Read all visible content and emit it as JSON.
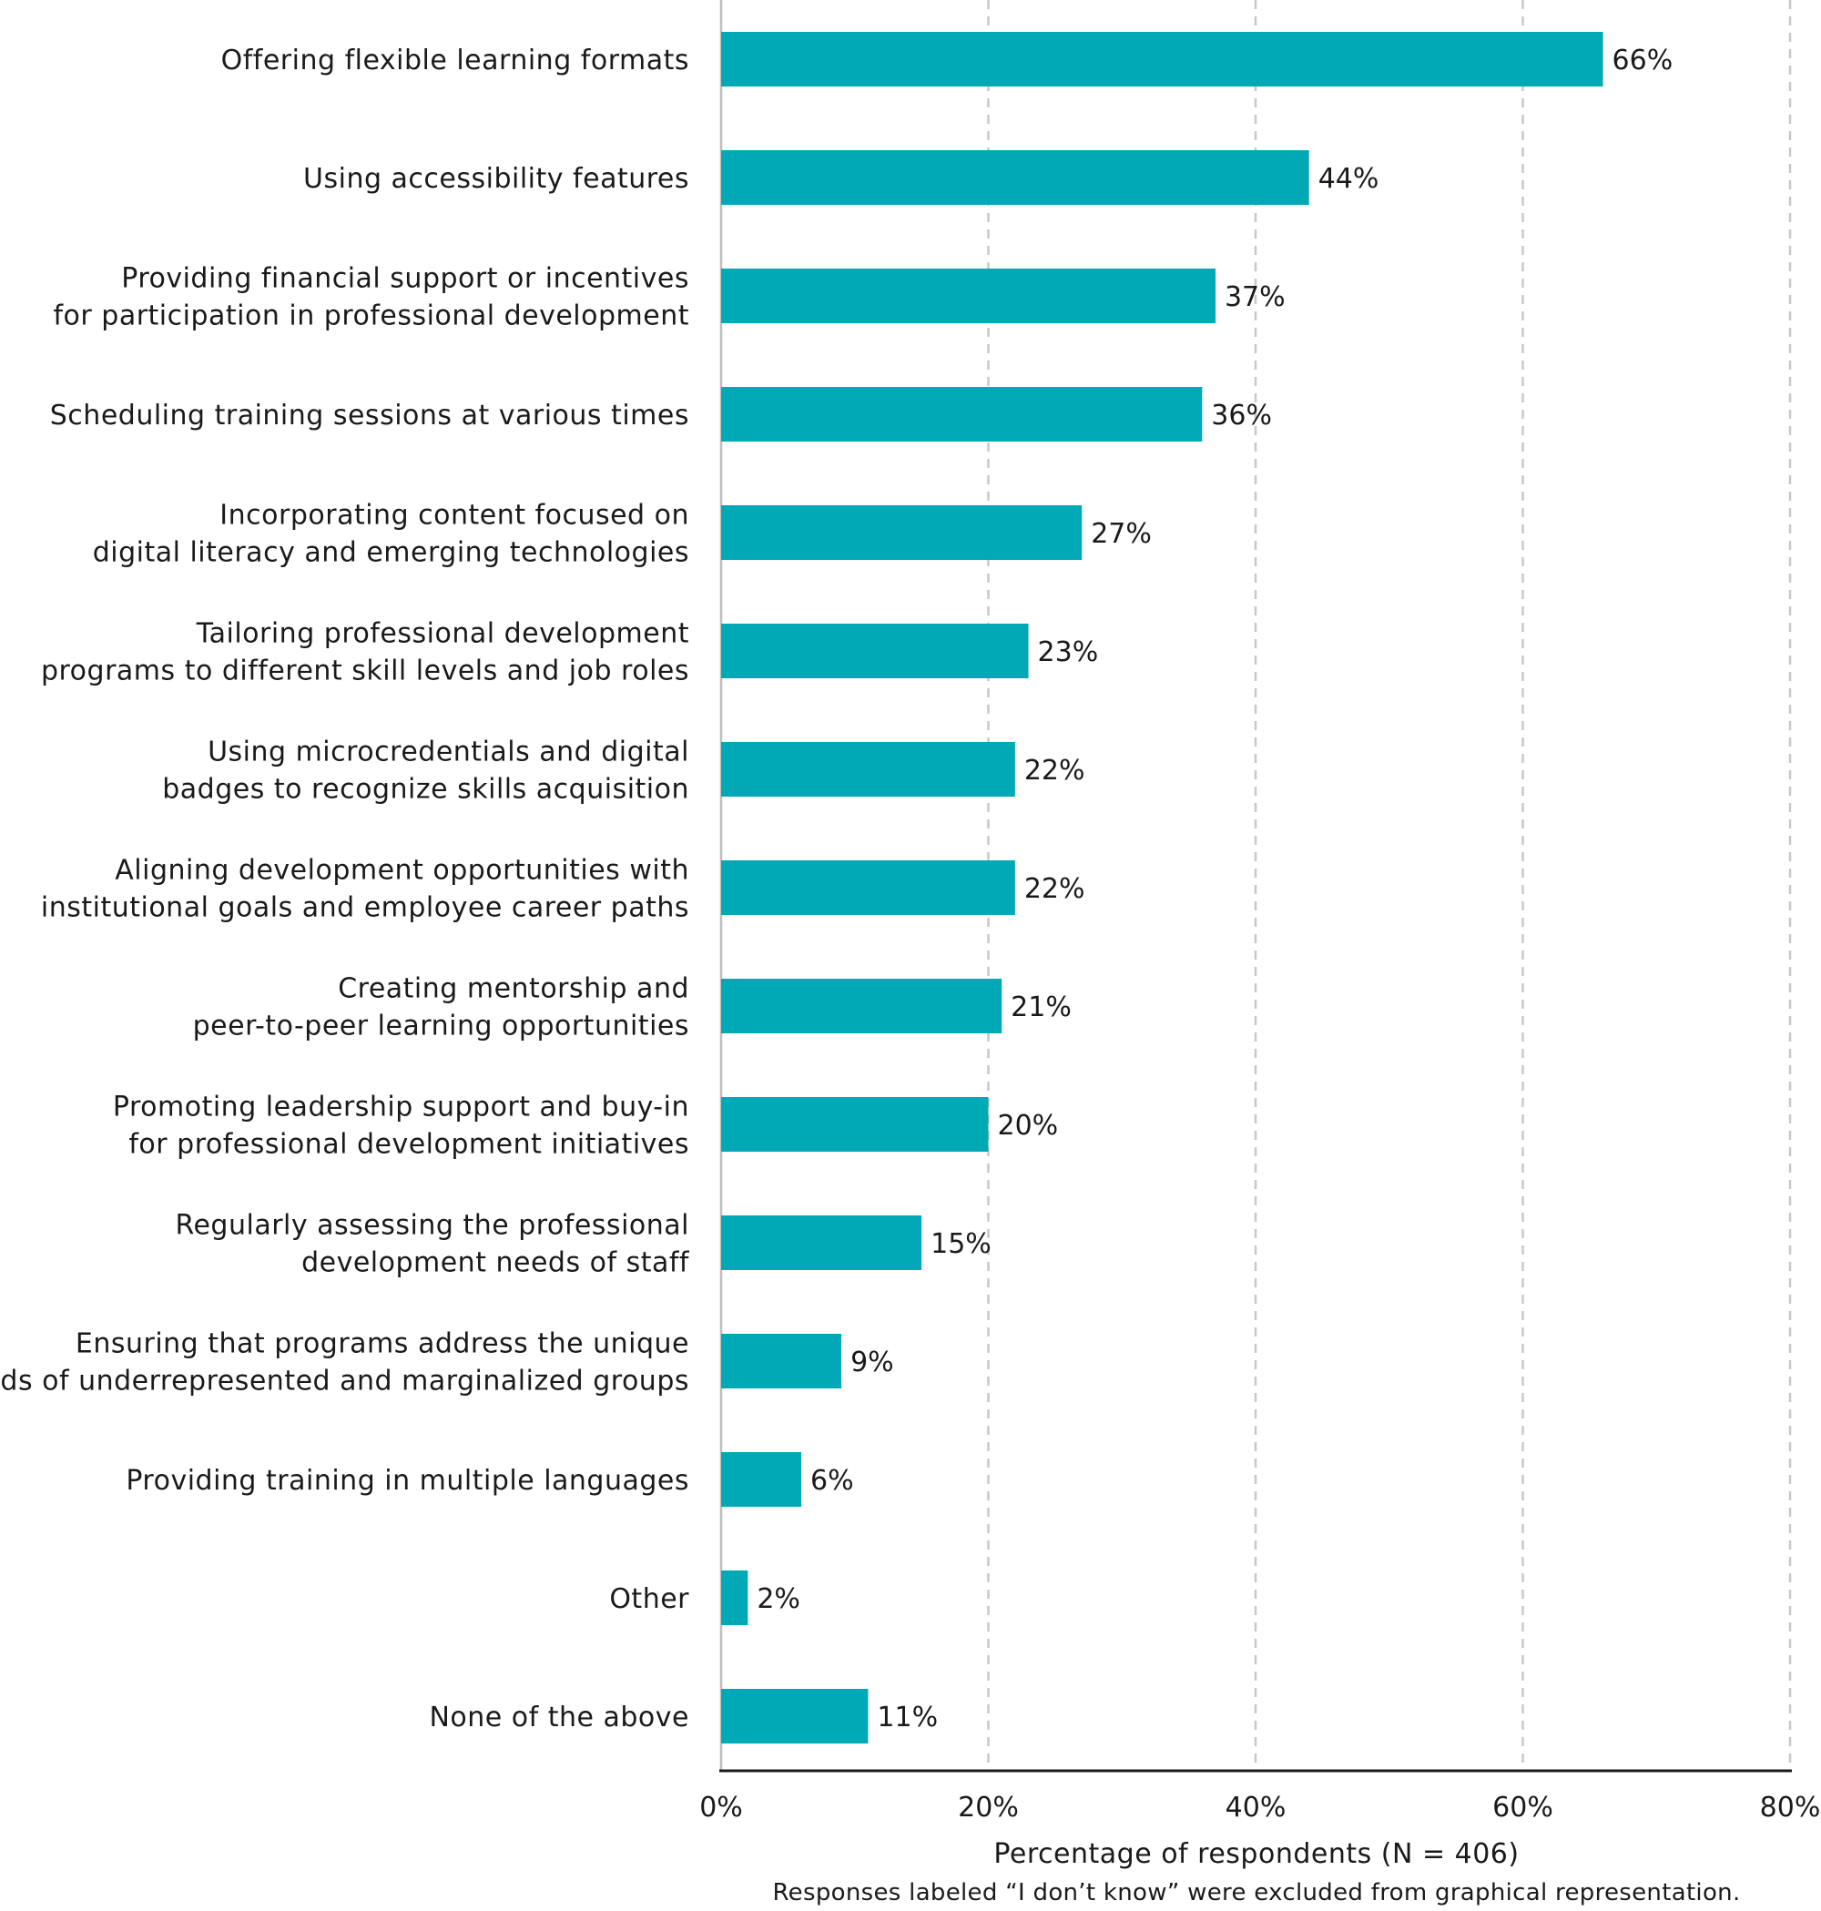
{
  "chart_data": {
    "type": "bar",
    "orientation": "horizontal",
    "categories": [
      [
        "Offering flexible learning formats"
      ],
      [
        "Using accessibility features"
      ],
      [
        "Providing financial support or incentives",
        "for participation in professional development"
      ],
      [
        "Scheduling training sessions at various times"
      ],
      [
        "Incorporating content focused on",
        "digital literacy and emerging technologies"
      ],
      [
        "Tailoring professional development",
        "programs to different skill levels and job roles"
      ],
      [
        "Using microcredentials and digital",
        "badges to recognize skills acquisition"
      ],
      [
        "Aligning development opportunities with",
        "institutional goals and employee career paths"
      ],
      [
        "Creating mentorship and",
        "peer-to-peer learning opportunities"
      ],
      [
        "Promoting leadership support and buy-in",
        "for professional development initiatives"
      ],
      [
        "Regularly assessing the professional",
        "development needs of staff"
      ],
      [
        "Ensuring that programs address the unique",
        "needs of underrepresented and marginalized groups"
      ],
      [
        "Providing training in multiple languages"
      ],
      [
        "Other"
      ],
      [
        "None of the above"
      ]
    ],
    "values": [
      66,
      44,
      37,
      36,
      27,
      23,
      22,
      22,
      21,
      20,
      15,
      9,
      6,
      2,
      11
    ],
    "value_labels": [
      "66%",
      "44%",
      "37%",
      "36%",
      "27%",
      "23%",
      "22%",
      "22%",
      "21%",
      "20%",
      "15%",
      "9%",
      "6%",
      "2%",
      "11%"
    ],
    "xlim": [
      0,
      80
    ],
    "x_ticks": [
      0,
      20,
      40,
      60,
      80
    ],
    "x_tick_labels": [
      "0%",
      "20%",
      "40%",
      "60%",
      "80%"
    ],
    "xlabel": "Percentage of respondents (N = 406)",
    "note": "Responses labeled “I don’t know” were excluded from graphical representation.",
    "grid": "vertical dashed",
    "bar_color": "#00A9B5",
    "grid_color": "#c8c8c8",
    "axis_color": "#1a1a1a"
  }
}
